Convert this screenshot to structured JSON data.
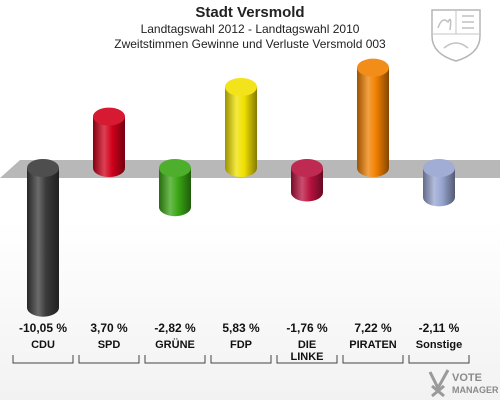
{
  "chart_data": {
    "type": "bar",
    "title": "Stadt Versmold",
    "subtitle_1": "Landtagswahl 2012 - Landtagswahl 2010",
    "subtitle_2": "Zweitstimmen Gewinne und Verluste Versmold 003",
    "categories": [
      {
        "lines": [
          "CDU"
        ],
        "value": -10.05,
        "label": "-10,05 %",
        "color": "#3a3a3a"
      },
      {
        "lines": [
          "SPD"
        ],
        "value": 3.7,
        "label": "3,70 %",
        "color": "#d0001b"
      },
      {
        "lines": [
          "GRÜNE"
        ],
        "value": -2.82,
        "label": "-2,82 %",
        "color": "#3aa614"
      },
      {
        "lines": [
          "FDP"
        ],
        "value": 5.83,
        "label": "5,83 %",
        "color": "#f0e000"
      },
      {
        "lines": [
          "DIE",
          "LINKE"
        ],
        "value": -1.76,
        "label": "-1,76 %",
        "color": "#b8123f"
      },
      {
        "lines": [
          "PIRATEN"
        ],
        "value": 7.22,
        "label": "7,22 %",
        "color": "#f08000"
      },
      {
        "lines": [
          "Sonstige"
        ],
        "value": -2.11,
        "label": "-2,11 %",
        "color": "#97a4cf"
      }
    ],
    "grid": false,
    "legend": "none"
  },
  "brand": {
    "line1": "VOTE",
    "line2": "MANAGER"
  }
}
